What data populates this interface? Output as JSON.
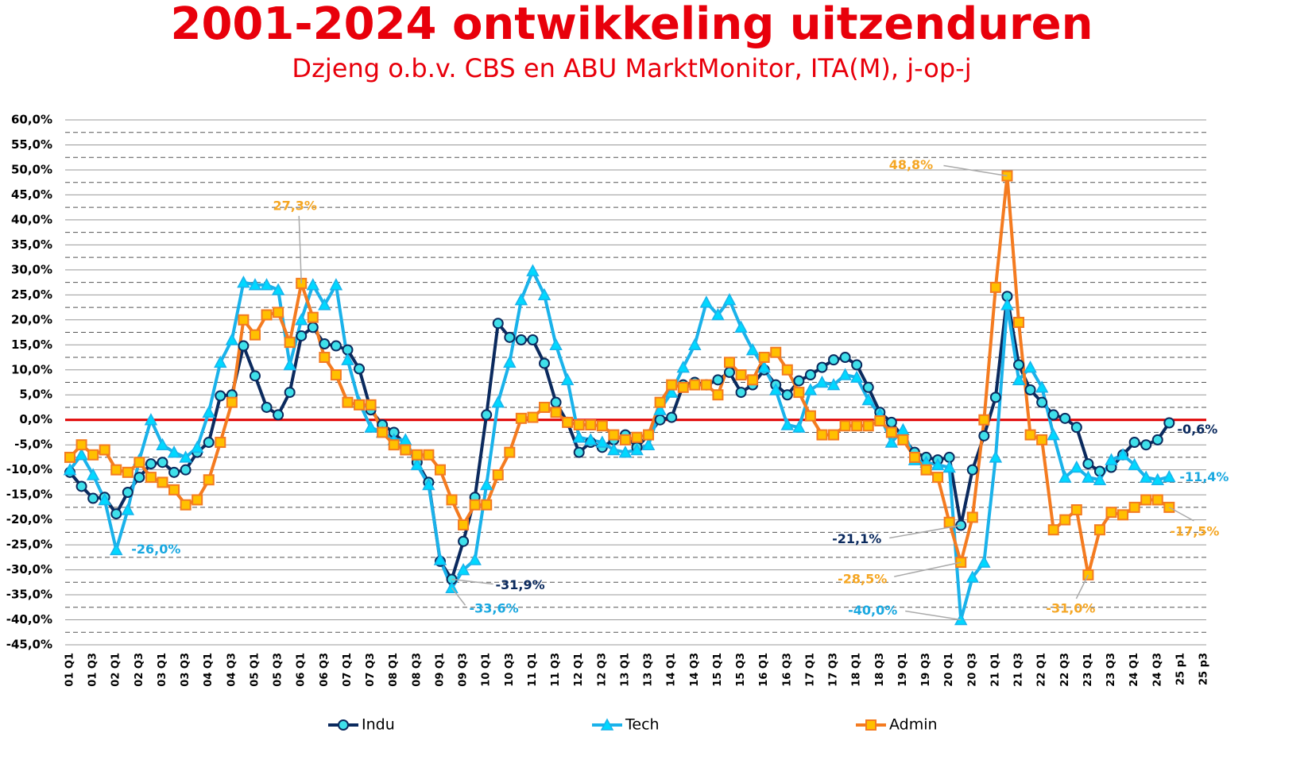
{
  "chart_data": {
    "type": "line",
    "title": "2001-2024 ontwikkeling uitzenduren",
    "subtitle": "Dzjeng o.b.v. CBS en ABU MarktMonitor, ITA(M), j-op-j",
    "categories": [
      "01 Q1",
      null,
      "01 Q3",
      null,
      "02 Q1",
      null,
      "02 Q3",
      null,
      "03 Q1",
      null,
      "03 Q3",
      null,
      "04 Q1",
      null,
      "04 Q3",
      null,
      "05 Q1",
      null,
      "05 Q3",
      null,
      "06 Q1",
      null,
      "06 Q3",
      null,
      "07 Q1",
      null,
      "07 Q3",
      null,
      "08 Q1",
      null,
      "08 Q3",
      null,
      "09 Q1",
      null,
      "09 Q3",
      null,
      "10 Q1",
      null,
      "10 Q3",
      null,
      "11 Q1",
      null,
      "11 Q3",
      null,
      "12 Q1",
      null,
      "12 Q3",
      null,
      "13 Q1",
      null,
      "13 Q3",
      null,
      "14 Q1",
      null,
      "14 Q3",
      null,
      "15 Q1",
      null,
      "15 Q3",
      null,
      "16 Q1",
      null,
      "16 Q3",
      null,
      "17 Q1",
      null,
      "17 Q3",
      null,
      "18 Q1",
      null,
      "18 Q3",
      null,
      "19 Q1",
      null,
      "19 Q3",
      null,
      "20 Q1",
      null,
      "20 Q3",
      null,
      "21 Q1",
      null,
      "21 Q3",
      null,
      "22 Q1",
      null,
      "22 Q3",
      null,
      "23 Q1",
      null,
      "23 Q3",
      null,
      "24 Q1",
      null,
      "24 Q3",
      null,
      "25 p1",
      null,
      "25 p3"
    ],
    "series": [
      {
        "name": "Indu",
        "color": "#0b2a5e",
        "marker": "circle",
        "marker_fill": "#3fe0ea",
        "label_color": "#0b2a5e",
        "values": [
          -10.5,
          -13.3,
          -15.7,
          -15.5,
          -18.8,
          -14.5,
          -11.5,
          -8.8,
          -8.5,
          -10.5,
          -10,
          -6.5,
          -4.5,
          4.8,
          5,
          14.8,
          8.8,
          2.5,
          1,
          5.5,
          16.8,
          18.5,
          15.2,
          14.8,
          14,
          10.2,
          2,
          -1,
          -2.5,
          -5,
          -8.5,
          -12.5,
          -28.3,
          -31.9,
          -24.3,
          -15.5,
          1,
          19.3,
          16.5,
          16,
          16,
          11.3,
          3.5,
          -0.5,
          -6.5,
          -4.5,
          -5.5,
          -4,
          -3,
          -5.5,
          -3,
          0,
          0.5,
          7,
          7.5,
          7,
          8,
          9.5,
          5.5,
          7,
          10,
          7,
          5,
          7.8,
          9,
          10.5,
          12,
          12.5,
          11,
          6.5,
          1.5,
          -0.5,
          -3.5,
          -6.5,
          -7.5,
          -8,
          -7.5,
          -21.1,
          -10,
          -3.2,
          4.5,
          24.7,
          11,
          6,
          3.5,
          1,
          0.3,
          -1.5,
          -8.8,
          -10.3,
          -9.5,
          -7,
          -4.5,
          -5,
          -4,
          -0.6,
          null,
          null,
          null
        ],
        "value_labels": [
          null,
          null,
          null,
          null,
          null,
          null,
          null,
          null,
          null,
          null,
          null,
          null,
          null,
          null,
          null,
          null,
          null,
          null,
          null,
          null,
          null,
          null,
          null,
          null,
          null,
          null,
          null,
          null,
          null,
          null,
          null,
          null,
          null,
          "-31,9%",
          null,
          null,
          null,
          null,
          null,
          null,
          null,
          null,
          null,
          null,
          null,
          null,
          null,
          null,
          null,
          null,
          null,
          null,
          null,
          null,
          null,
          null,
          null,
          null,
          null,
          null,
          null,
          null,
          null,
          null,
          null,
          null,
          null,
          null,
          null,
          null,
          null,
          null,
          null,
          null,
          null,
          null,
          null,
          "-21,1%",
          null,
          null,
          null,
          null,
          null,
          null,
          null,
          null,
          null,
          null,
          null,
          null,
          null,
          null,
          null,
          null,
          null,
          "-0,6%",
          null,
          null,
          null
        ]
      },
      {
        "name": "Tech",
        "color": "#1ab2ea",
        "marker": "triangle",
        "marker_fill": "#00d8ff",
        "label_color": "#1aa8e0",
        "values": [
          -10,
          -7,
          -11,
          -16,
          -26,
          -18,
          -8,
          0,
          -5,
          -6.5,
          -7.5,
          -5.5,
          1.5,
          11.5,
          16,
          27.5,
          27,
          27,
          26,
          11,
          20,
          27,
          23,
          27,
          12,
          3.5,
          -1.5,
          -2.5,
          -4,
          -4,
          -9,
          -13,
          -28,
          -33.6,
          -30,
          -28,
          -13,
          3.5,
          11.5,
          24,
          29.8,
          25,
          15,
          8,
          -3.5,
          -4,
          -4.5,
          -6,
          -6.5,
          -6,
          -5,
          2,
          5.5,
          10.5,
          15,
          23.5,
          21,
          24,
          18.5,
          14,
          10.5,
          6,
          -1,
          -1.5,
          6,
          7.5,
          7,
          9,
          8.5,
          4,
          1,
          -4.5,
          -2,
          -8,
          -8.5,
          -9,
          -9.5,
          -40,
          -31.5,
          -28.5,
          -7.5,
          23,
          8,
          10.5,
          6.5,
          -3,
          -11.5,
          -9.5,
          -11.5,
          -12,
          -8,
          -7,
          -9,
          -11.5,
          -12,
          -11.4,
          null,
          null,
          null
        ],
        "value_labels": [
          null,
          null,
          null,
          null,
          "-26,0%",
          null,
          null,
          null,
          null,
          null,
          null,
          null,
          null,
          null,
          null,
          null,
          null,
          null,
          null,
          null,
          null,
          null,
          null,
          null,
          null,
          null,
          null,
          null,
          null,
          null,
          null,
          null,
          null,
          "-33,6%",
          null,
          null,
          null,
          null,
          null,
          null,
          null,
          null,
          null,
          null,
          null,
          null,
          null,
          null,
          null,
          null,
          null,
          null,
          null,
          null,
          null,
          null,
          null,
          null,
          null,
          null,
          null,
          null,
          null,
          null,
          null,
          null,
          null,
          null,
          null,
          null,
          null,
          null,
          null,
          null,
          null,
          null,
          null,
          "-40,0%",
          null,
          null,
          null,
          null,
          null,
          null,
          null,
          null,
          null,
          null,
          null,
          null,
          null,
          null,
          null,
          null,
          null,
          "-11,4%",
          null,
          null,
          null
        ]
      },
      {
        "name": "Admin",
        "color": "#f47b20",
        "marker": "square",
        "marker_fill": "#ffc000",
        "label_color": "#f5a623",
        "values": [
          -7.5,
          -5,
          -7,
          -6,
          -10,
          -10.5,
          -8.5,
          -11.5,
          -12.5,
          -14,
          -17,
          -16,
          -12,
          -4.5,
          3.5,
          20,
          17,
          21,
          21.5,
          15.5,
          27.3,
          20.5,
          12.5,
          9,
          3.5,
          3,
          3,
          -2.5,
          -5,
          -6,
          -7,
          -7,
          -10,
          -16,
          -21,
          -17,
          -17,
          -11,
          -6.5,
          0.3,
          0.5,
          2.5,
          1.5,
          -0.5,
          -1,
          -1,
          -1.2,
          -3,
          -4,
          -3.5,
          -3,
          3.5,
          7,
          6.5,
          7,
          7,
          5,
          11.5,
          9,
          8,
          12.5,
          13.5,
          10,
          5.5,
          0.8,
          -3,
          -3,
          -1.2,
          -1.2,
          -1.2,
          -0.2,
          -2.5,
          -4,
          -7.5,
          -10,
          -11.5,
          -20.5,
          -28.5,
          -19.5,
          0,
          26.5,
          48.8,
          19.5,
          -3,
          -4,
          -22,
          -20,
          -18,
          -31,
          -22,
          -18.5,
          -19,
          -17.5,
          -16,
          -16,
          -17.5,
          null,
          null,
          null
        ],
        "value_labels": [
          null,
          null,
          null,
          null,
          null,
          null,
          null,
          null,
          null,
          null,
          null,
          null,
          null,
          null,
          null,
          null,
          null,
          null,
          null,
          null,
          "27,3%",
          null,
          null,
          null,
          null,
          null,
          null,
          null,
          null,
          null,
          null,
          null,
          null,
          null,
          null,
          null,
          null,
          null,
          null,
          null,
          null,
          null,
          null,
          null,
          null,
          null,
          null,
          null,
          null,
          null,
          null,
          null,
          null,
          null,
          null,
          null,
          null,
          null,
          null,
          null,
          null,
          null,
          null,
          null,
          null,
          null,
          null,
          null,
          null,
          null,
          null,
          null,
          null,
          null,
          null,
          null,
          null,
          "-28,5%",
          null,
          null,
          null,
          "48,8%",
          null,
          null,
          null,
          null,
          null,
          null,
          "-31,0%",
          null,
          null,
          null,
          null,
          null,
          null,
          "-17,5%",
          null,
          null,
          null
        ]
      }
    ],
    "ylim": [
      -45,
      60
    ],
    "yticks": [
      {
        "value": 60,
        "label": "60,0%"
      },
      {
        "value": 55,
        "label": "55,0%"
      },
      {
        "value": 50,
        "label": "50,0%"
      },
      {
        "value": 45,
        "label": "45,0%"
      },
      {
        "value": 40,
        "label": "40,0%"
      },
      {
        "value": 35,
        "label": "35,0%"
      },
      {
        "value": 30,
        "label": "30,0%"
      },
      {
        "value": 25,
        "label": "25,0%"
      },
      {
        "value": 20,
        "label": "20,0%"
      },
      {
        "value": 15,
        "label": "15,0%"
      },
      {
        "value": 10,
        "label": "10,0%"
      },
      {
        "value": 5,
        "label": "5,0%"
      },
      {
        "value": 0,
        "label": "0,0%"
      },
      {
        "value": -5,
        "label": "-5,0%"
      },
      {
        "value": -10,
        "label": "-10,0%"
      },
      {
        "value": -15,
        "label": "-15,0%"
      },
      {
        "value": -20,
        "label": "-20,0%"
      },
      {
        "value": -25,
        "label": "-25,0%"
      },
      {
        "value": -30,
        "label": "-30,0%"
      },
      {
        "value": -35,
        "label": "-35,0%"
      },
      {
        "value": -40,
        "label": "-40,0%"
      },
      {
        "value": -45,
        "label": "-45,0%"
      }
    ],
    "grid": true,
    "minor_grid": true,
    "zero_line": "#e00000",
    "legend": "bottom"
  }
}
